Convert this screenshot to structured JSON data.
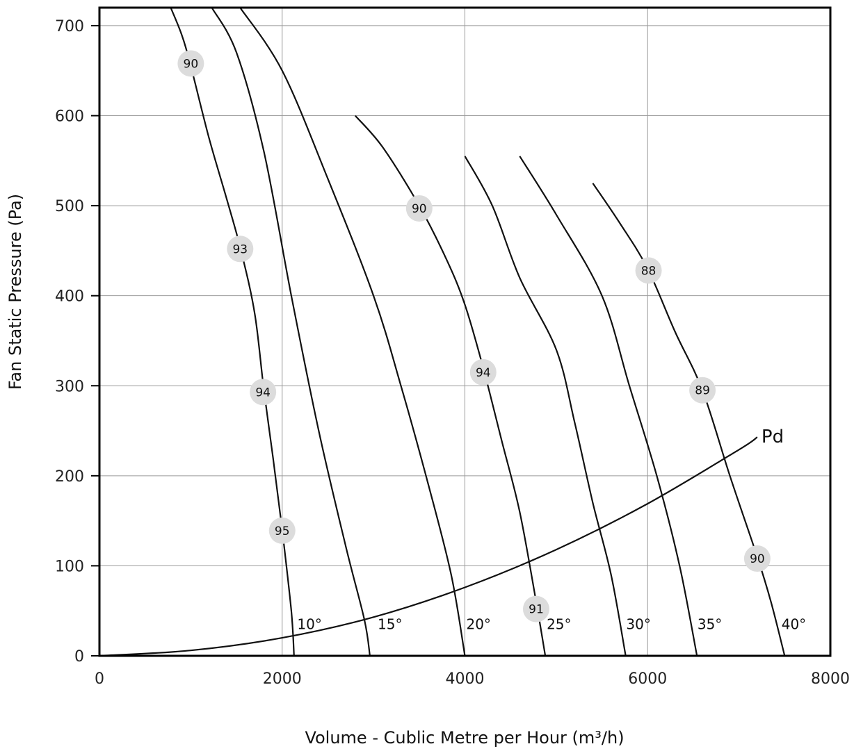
{
  "chart_data": {
    "type": "line",
    "xlabel": "Volume - Cublic Metre per Hour (m³/h)",
    "ylabel": "Fan Static Pressure (Pa)",
    "xlim": [
      0,
      8000
    ],
    "ylim": [
      0,
      720
    ],
    "x_ticks": [
      "0",
      "2000",
      "4000",
      "6000",
      "8000"
    ],
    "y_ticks": [
      "0",
      "100",
      "200",
      "300",
      "400",
      "500",
      "600",
      "700"
    ],
    "grid": true,
    "series": [
      {
        "name": "10°",
        "points": [
          [
            780,
            720
          ],
          [
            900,
            690
          ],
          [
            1000,
            655
          ],
          [
            1200,
            575
          ],
          [
            1400,
            505
          ],
          [
            1550,
            450
          ],
          [
            1700,
            380
          ],
          [
            1800,
            295
          ],
          [
            1900,
            220
          ],
          [
            2000,
            140
          ],
          [
            2100,
            50
          ],
          [
            2130,
            0
          ]
        ]
      },
      {
        "name": "15°",
        "points": [
          [
            1230,
            720
          ],
          [
            1500,
            670
          ],
          [
            1800,
            560
          ],
          [
            2100,
            400
          ],
          [
            2400,
            250
          ],
          [
            2700,
            120
          ],
          [
            2900,
            40
          ],
          [
            2960,
            0
          ]
        ]
      },
      {
        "name": "20°",
        "points": [
          [
            1540,
            720
          ],
          [
            2000,
            650
          ],
          [
            2500,
            530
          ],
          [
            3000,
            400
          ],
          [
            3300,
            300
          ],
          [
            3600,
            190
          ],
          [
            3850,
            90
          ],
          [
            4000,
            0
          ]
        ]
      },
      {
        "name": "25°",
        "points": [
          [
            2800,
            600
          ],
          [
            3100,
            565
          ],
          [
            3500,
            500
          ],
          [
            3800,
            440
          ],
          [
            4000,
            390
          ],
          [
            4200,
            320
          ],
          [
            4400,
            240
          ],
          [
            4600,
            160
          ],
          [
            4780,
            60
          ],
          [
            4880,
            0
          ]
        ]
      },
      {
        "name": "30°",
        "points": [
          [
            4000,
            555
          ],
          [
            4300,
            500
          ],
          [
            4600,
            420
          ],
          [
            5000,
            340
          ],
          [
            5200,
            260
          ],
          [
            5400,
            170
          ],
          [
            5600,
            90
          ],
          [
            5760,
            0
          ]
        ]
      },
      {
        "name": "35°",
        "points": [
          [
            4600,
            555
          ],
          [
            5000,
            490
          ],
          [
            5500,
            400
          ],
          [
            5800,
            300
          ],
          [
            6100,
            200
          ],
          [
            6350,
            100
          ],
          [
            6540,
            0
          ]
        ]
      },
      {
        "name": "40°",
        "points": [
          [
            5400,
            525
          ],
          [
            5700,
            480
          ],
          [
            6000,
            430
          ],
          [
            6300,
            360
          ],
          [
            6600,
            295
          ],
          [
            6900,
            200
          ],
          [
            7200,
            110
          ],
          [
            7350,
            60
          ],
          [
            7500,
            0
          ]
        ]
      }
    ],
    "angle_labels": [
      {
        "text": "10°",
        "x": 2300,
        "y": 35
      },
      {
        "text": "15°",
        "x": 3180,
        "y": 35
      },
      {
        "text": "20°",
        "x": 4150,
        "y": 35
      },
      {
        "text": "25°",
        "x": 5030,
        "y": 35
      },
      {
        "text": "30°",
        "x": 5900,
        "y": 35
      },
      {
        "text": "35°",
        "x": 6680,
        "y": 35
      },
      {
        "text": "40°",
        "x": 7600,
        "y": 35
      }
    ],
    "pd_curve": {
      "name": "Pd",
      "points": [
        [
          0,
          0
        ],
        [
          1000,
          6
        ],
        [
          2000,
          20
        ],
        [
          3000,
          43
        ],
        [
          4000,
          76
        ],
        [
          5000,
          118
        ],
        [
          6000,
          169
        ],
        [
          7000,
          229
        ],
        [
          7200,
          243
        ]
      ]
    },
    "efficiency_markers": [
      {
        "label": "90",
        "x": 1000,
        "y": 658
      },
      {
        "label": "93",
        "x": 1540,
        "y": 452
      },
      {
        "label": "94",
        "x": 1790,
        "y": 293
      },
      {
        "label": "95",
        "x": 2000,
        "y": 139
      },
      {
        "label": "90",
        "x": 3500,
        "y": 497
      },
      {
        "label": "94",
        "x": 4200,
        "y": 315
      },
      {
        "label": "91",
        "x": 4780,
        "y": 52
      },
      {
        "label": "88",
        "x": 6010,
        "y": 428
      },
      {
        "label": "89",
        "x": 6600,
        "y": 295
      },
      {
        "label": "90",
        "x": 7200,
        "y": 108
      }
    ]
  }
}
